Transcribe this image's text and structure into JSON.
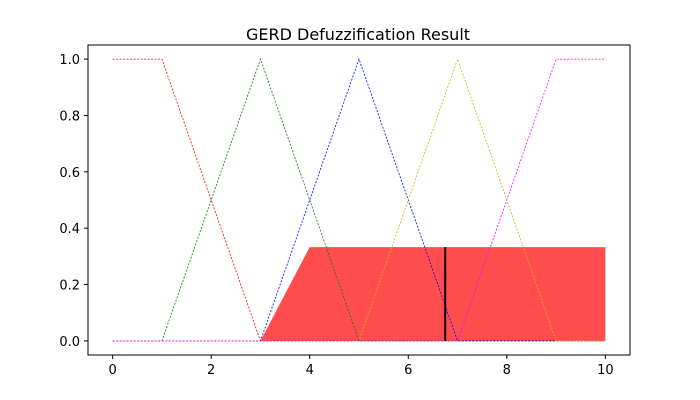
{
  "chart_data": {
    "type": "line",
    "title": "GERD Defuzzification Result",
    "xlabel": "",
    "ylabel": "",
    "xlim": [
      -0.5,
      10.5
    ],
    "ylim": [
      -0.05,
      1.05
    ],
    "xticks": [
      0,
      2,
      4,
      6,
      8,
      10
    ],
    "xtick_labels": [
      "0",
      "2",
      "4",
      "6",
      "8",
      "10"
    ],
    "yticks": [
      0.0,
      0.2,
      0.4,
      0.6,
      0.8,
      1.0
    ],
    "ytick_labels": [
      "0.0",
      "0.2",
      "0.4",
      "0.6",
      "0.8",
      "1.0"
    ],
    "grid": false,
    "series": [
      {
        "color": "#ff0000",
        "style": "dashed",
        "x": [
          0,
          1,
          3,
          10
        ],
        "y": [
          1,
          1,
          0,
          0
        ]
      },
      {
        "color": "#008000",
        "style": "dashed",
        "x": [
          0,
          1,
          3,
          5,
          10
        ],
        "y": [
          0,
          0,
          1,
          0,
          0
        ]
      },
      {
        "color": "#0000ff",
        "style": "dashed",
        "x": [
          0,
          3,
          5,
          7,
          10
        ],
        "y": [
          0,
          0,
          1,
          0,
          0
        ]
      },
      {
        "color": "#bfbf00",
        "style": "dashed",
        "x": [
          0,
          5,
          7,
          9,
          10
        ],
        "y": [
          0,
          0,
          1,
          0,
          0
        ]
      },
      {
        "color": "#ff00ff",
        "style": "dashed",
        "x": [
          0,
          7,
          9,
          10
        ],
        "y": [
          0,
          0,
          1,
          1
        ]
      }
    ],
    "filled_area": {
      "color": "#ff4d4d",
      "x": [
        3,
        4,
        10,
        10,
        3
      ],
      "y": [
        0,
        0.333,
        0.333,
        0,
        0
      ]
    },
    "centroid": {
      "color": "#000000",
      "x": 6.75,
      "y_min": 0,
      "y_max": 0.333
    }
  }
}
